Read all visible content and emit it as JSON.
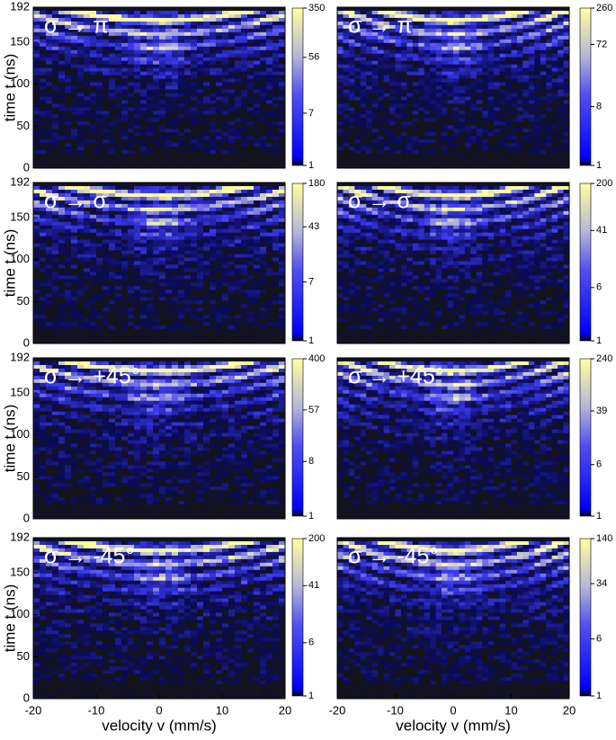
{
  "chart_data": [
    {
      "type": "heatmap",
      "title": "σ → π",
      "ylabel": "time t (ns)",
      "ylim": [
        0,
        192
      ],
      "yticks": [
        0,
        50,
        100,
        150,
        192
      ],
      "xlim": [
        -20,
        20
      ],
      "colorbar": {
        "lim": [
          1,
          350
        ],
        "ticks": [
          1,
          7,
          56,
          350
        ],
        "log": true
      }
    },
    {
      "type": "heatmap",
      "title": "σ → π",
      "ylim": [
        0,
        192
      ],
      "xlim": [
        -20,
        20
      ],
      "colorbar": {
        "lim": [
          1,
          260
        ],
        "ticks": [
          1,
          8,
          72,
          260
        ],
        "log": true
      }
    },
    {
      "type": "heatmap",
      "title": "σ → σ",
      "ylabel": "time t (ns)",
      "ylim": [
        0,
        192
      ],
      "yticks": [
        0,
        50,
        100,
        150,
        192
      ],
      "xlim": [
        -20,
        20
      ],
      "colorbar": {
        "lim": [
          1,
          180
        ],
        "ticks": [
          1,
          7,
          43,
          180
        ],
        "log": true
      }
    },
    {
      "type": "heatmap",
      "title": "σ → σ",
      "ylim": [
        0,
        192
      ],
      "xlim": [
        -20,
        20
      ],
      "colorbar": {
        "lim": [
          1,
          200
        ],
        "ticks": [
          1,
          6,
          41,
          200
        ],
        "log": true
      }
    },
    {
      "type": "heatmap",
      "title": "σ → +45°",
      "ylabel": "time t (ns)",
      "ylim": [
        0,
        192
      ],
      "yticks": [
        0,
        50,
        100,
        150,
        192
      ],
      "xlim": [
        -20,
        20
      ],
      "colorbar": {
        "lim": [
          1,
          400
        ],
        "ticks": [
          1,
          8,
          57,
          400
        ],
        "log": true
      }
    },
    {
      "type": "heatmap",
      "title": "σ → +45°",
      "ylim": [
        0,
        192
      ],
      "xlim": [
        -20,
        20
      ],
      "colorbar": {
        "lim": [
          1,
          240
        ],
        "ticks": [
          1,
          6,
          39,
          240
        ],
        "log": true
      }
    },
    {
      "type": "heatmap",
      "title": "σ → -45°",
      "ylabel": "time t (ns)",
      "xlabel": "velocity v (mm/s)",
      "ylim": [
        0,
        192
      ],
      "yticks": [
        0,
        50,
        100,
        150,
        192
      ],
      "xlim": [
        -20,
        20
      ],
      "xticks": [
        -20,
        -10,
        0,
        10,
        20
      ],
      "colorbar": {
        "lim": [
          1,
          200
        ],
        "ticks": [
          1,
          6,
          41,
          200
        ],
        "log": true
      }
    },
    {
      "type": "heatmap",
      "title": "σ → -45°",
      "xlabel": "velocity v (mm/s)",
      "ylim": [
        0,
        192
      ],
      "xlim": [
        -20,
        20
      ],
      "xticks": [
        -20,
        -10,
        0,
        10,
        20
      ],
      "colorbar": {
        "lim": [
          1,
          140
        ],
        "ticks": [
          1,
          6,
          34,
          140
        ],
        "log": true
      }
    }
  ]
}
